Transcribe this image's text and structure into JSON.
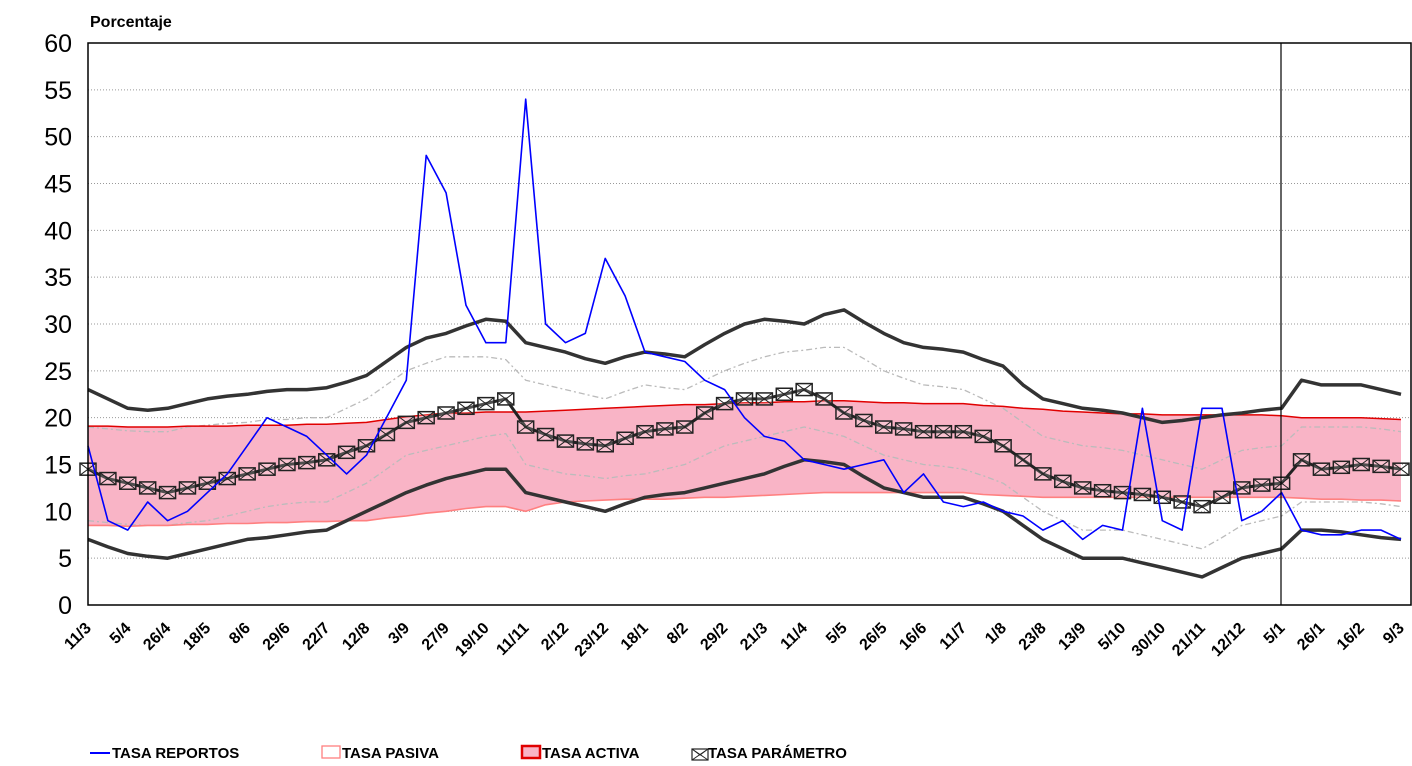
{
  "chart_data": {
    "type": "line",
    "y_label": "Porcentaje",
    "categories": [
      "11/3",
      null,
      "5/4",
      null,
      "26/4",
      null,
      "18/5",
      null,
      "8/6",
      null,
      "29/6",
      null,
      "22/7",
      null,
      "12/8",
      null,
      "3/9",
      null,
      "27/9",
      null,
      "19/10",
      null,
      "11/11",
      null,
      "2/12",
      null,
      "23/12",
      null,
      "18/1",
      null,
      "8/2",
      null,
      "29/2",
      null,
      "21/3",
      null,
      "11/4",
      null,
      "5/5",
      null,
      "26/5",
      null,
      "16/6",
      null,
      "11/7",
      null,
      "1/8",
      null,
      "23/8",
      null,
      "13/9",
      null,
      "5/10",
      null,
      "30/10",
      null,
      "21/11",
      null,
      "12/12",
      null,
      "5/1",
      null,
      "26/1",
      null,
      "16/2",
      null,
      "9/3"
    ],
    "ylim": [
      0,
      60
    ],
    "yticks": [
      0,
      5,
      10,
      15,
      20,
      25,
      30,
      35,
      40,
      45,
      50,
      55,
      60
    ],
    "grid": true,
    "series": [
      {
        "name": "TASA REPORTOS",
        "color": "#0000ff",
        "values": [
          17,
          9,
          8,
          11,
          9,
          10,
          12,
          14,
          17,
          20,
          19,
          18,
          16,
          14,
          16,
          20,
          24,
          48,
          44,
          32,
          28,
          28,
          54,
          30,
          28,
          29,
          37,
          33,
          27,
          26.5,
          26,
          24,
          23,
          20,
          18,
          17.5,
          15.5,
          15,
          14.5,
          15,
          15.5,
          12,
          14,
          11,
          10.5,
          11,
          10,
          9.5,
          8,
          9,
          7,
          8.5,
          8,
          21,
          9,
          8,
          21,
          21,
          9,
          10,
          12,
          8,
          7.5,
          7.5,
          8,
          8,
          7
        ]
      },
      {
        "name": "TASA PASIVA",
        "color": "#ff8080",
        "values": [
          8.5,
          8.5,
          8.4,
          8.5,
          8.5,
          8.6,
          8.6,
          8.7,
          8.7,
          8.8,
          8.8,
          8.9,
          8.9,
          9,
          9,
          9.3,
          9.5,
          9.8,
          10,
          10.3,
          10.5,
          10.5,
          10,
          10.7,
          11,
          11.1,
          11.2,
          11.3,
          11.3,
          11.3,
          11.4,
          11.5,
          11.5,
          11.6,
          11.7,
          11.8,
          11.9,
          12,
          12,
          12,
          12,
          12,
          12,
          12,
          12,
          11.8,
          11.7,
          11.6,
          11.5,
          11.5,
          11.5,
          11.5,
          11.5,
          11.5,
          11.5,
          11.5,
          11.5,
          11.5,
          11.5,
          11.5,
          11.5,
          11.4,
          11.3,
          11.3,
          11.2,
          11.2,
          11.1
        ]
      },
      {
        "name": "TASA ACTIVA",
        "color": "#e00000",
        "fill": "#f9b4c6",
        "values": [
          19.1,
          19.1,
          19,
          19,
          19,
          19.1,
          19.1,
          19.1,
          19.2,
          19.2,
          19.2,
          19.3,
          19.3,
          19.4,
          19.5,
          19.8,
          20.1,
          20.3,
          20.5,
          20.5,
          20.6,
          20.6,
          20.6,
          20.7,
          20.8,
          20.9,
          21,
          21.1,
          21.2,
          21.3,
          21.4,
          21.4,
          21.5,
          21.6,
          21.6,
          21.7,
          21.7,
          21.8,
          21.8,
          21.7,
          21.6,
          21.6,
          21.5,
          21.5,
          21.5,
          21.3,
          21.2,
          21,
          20.9,
          20.7,
          20.6,
          20.5,
          20.4,
          20.4,
          20.3,
          20.3,
          20.3,
          20.3,
          20.3,
          20.3,
          20.2,
          20,
          20,
          20,
          20,
          19.9,
          19.8
        ]
      },
      {
        "name": "TASA PARÁMETRO",
        "color": "#222222",
        "marker": "box-x",
        "values": [
          14.5,
          13.5,
          13,
          12.5,
          12,
          12.5,
          13,
          13.5,
          14,
          14.5,
          15,
          15.2,
          15.5,
          16.3,
          17,
          18.2,
          19.5,
          20,
          20.5,
          21,
          21.5,
          22,
          19,
          18.2,
          17.5,
          17.2,
          17,
          17.8,
          18.5,
          18.8,
          19,
          20.5,
          21.5,
          22,
          22,
          22.5,
          23,
          22,
          20.5,
          19.7,
          19,
          18.8,
          18.5,
          18.5,
          18.5,
          18,
          17,
          15.5,
          14,
          13.2,
          12.5,
          12.2,
          12,
          11.8,
          11.5,
          11,
          10.5,
          11.5,
          12.5,
          12.8,
          13,
          15.5,
          14.5,
          14.7,
          15,
          14.8,
          14.5
        ]
      },
      {
        "color": "#333333",
        "values": [
          23,
          22,
          21,
          20.8,
          21,
          21.5,
          22,
          22.3,
          22.5,
          22.8,
          23,
          23,
          23.2,
          23.8,
          24.5,
          26,
          27.5,
          28.5,
          29,
          29.8,
          30.5,
          30.3,
          28,
          27.5,
          27,
          26.3,
          25.8,
          26.5,
          27,
          26.8,
          26.5,
          27.8,
          29,
          30,
          30.5,
          30.3,
          30,
          31,
          31.5,
          30.2,
          29,
          28,
          27.5,
          27.3,
          27,
          26.2,
          25.5,
          23.5,
          22,
          21.5,
          21,
          20.8,
          20.5,
          20,
          19.5,
          19.7,
          20,
          20.3,
          20.5,
          20.8,
          21,
          24,
          23.5,
          23.5,
          23.5,
          23,
          22.5
        ]
      },
      {
        "color": "#333333",
        "values": [
          7,
          6.2,
          5.5,
          5.2,
          5,
          5.5,
          6,
          6.5,
          7,
          7.2,
          7.5,
          7.8,
          8,
          9,
          10,
          11,
          12,
          12.8,
          13.5,
          14,
          14.5,
          14.5,
          12,
          11.5,
          11,
          10.5,
          10,
          10.8,
          11.5,
          11.8,
          12,
          12.5,
          13,
          13.5,
          14,
          14.8,
          15.5,
          15.3,
          15,
          13.7,
          12.5,
          12,
          11.5,
          11.5,
          11.5,
          10.8,
          10,
          8.5,
          7,
          6,
          5,
          5,
          5,
          4.5,
          4,
          3.5,
          3,
          4,
          5,
          5.5,
          6,
          8,
          8,
          7.8,
          7.5,
          7.2,
          7
        ]
      },
      {
        "color": "#bbbbbb",
        "dashed": true,
        "values": [
          19,
          18.8,
          18.6,
          18.5,
          18.5,
          19,
          19.2,
          19.4,
          19.5,
          19.8,
          19.8,
          20,
          20,
          21,
          22,
          23.5,
          25,
          25.8,
          26.5,
          26.5,
          26.5,
          26.2,
          24,
          23.5,
          23,
          22.5,
          22,
          22.8,
          23.5,
          23.2,
          23,
          24,
          25,
          25.8,
          26.5,
          27,
          27.2,
          27.5,
          27.5,
          26.3,
          25,
          24.2,
          23.5,
          23.3,
          23,
          22,
          21,
          19.5,
          18,
          17.5,
          17,
          16.8,
          16.5,
          16,
          15.5,
          15,
          14.5,
          15.5,
          16.5,
          16.8,
          17,
          19,
          19,
          19,
          19,
          18.8,
          18.5
        ]
      },
      {
        "color": "#bbbbbb",
        "dashed": true,
        "values": [
          9,
          8.8,
          8.6,
          8.5,
          8.5,
          8.8,
          9,
          9.5,
          10,
          10.5,
          10.8,
          11,
          11,
          12,
          13,
          14.5,
          16,
          16.5,
          17,
          17.5,
          18,
          18.3,
          15,
          14.5,
          14,
          13.8,
          13.5,
          13.8,
          14,
          14.5,
          15,
          16,
          17,
          17.5,
          18,
          18.5,
          19,
          18.5,
          18,
          17,
          16,
          15.5,
          15,
          14.8,
          14.5,
          13.8,
          13,
          11.5,
          10,
          9,
          8,
          8,
          8,
          7.5,
          7,
          6.5,
          6,
          7.2,
          8.5,
          9,
          9.5,
          11,
          11,
          11,
          11,
          10.8,
          10.5
        ]
      }
    ]
  }
}
